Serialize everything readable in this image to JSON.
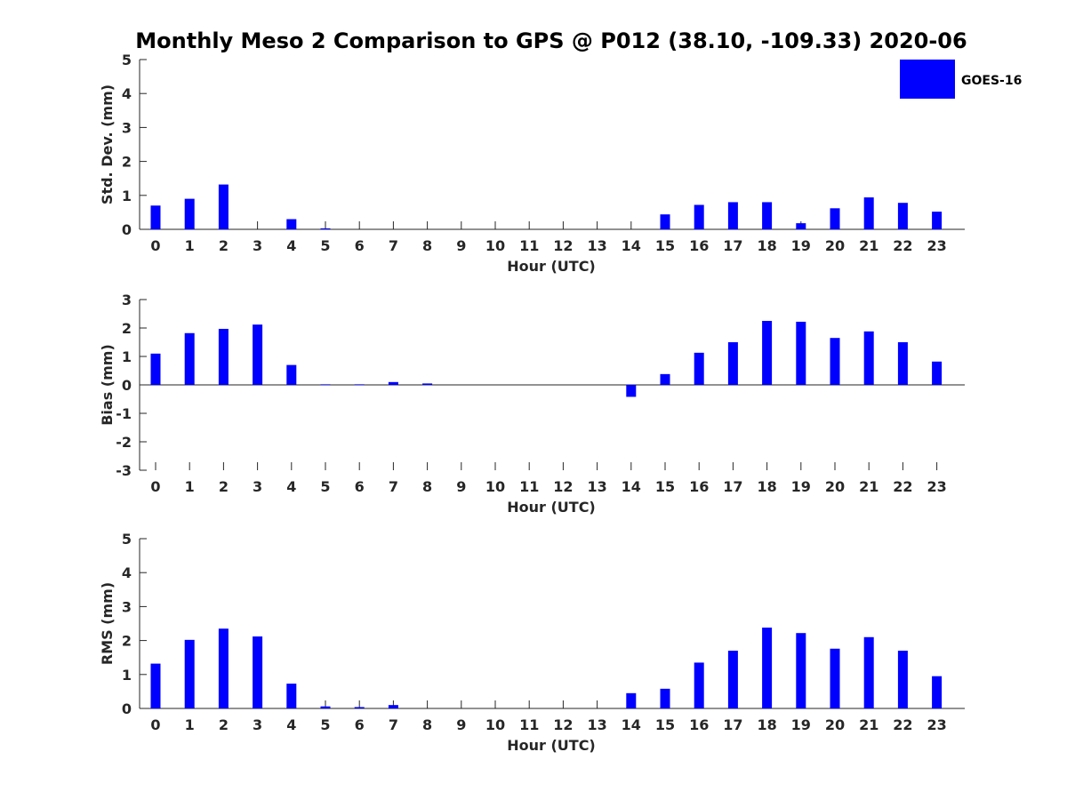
{
  "title": "Monthly Meso 2 Comparison to GPS @ P012 (38.10, -109.33) 2020-06",
  "legend": {
    "label": "GOES-16",
    "color": "#0000ff"
  },
  "chart_data": [
    {
      "type": "bar",
      "ylabel": "Std. Dev. (mm)",
      "xlabel": "Hour (UTC)",
      "ylim": [
        0,
        5
      ],
      "yticks": [
        0,
        1,
        2,
        3,
        4,
        5
      ],
      "categories": [
        "0",
        "1",
        "2",
        "3",
        "4",
        "5",
        "6",
        "7",
        "8",
        "9",
        "10",
        "11",
        "12",
        "13",
        "14",
        "15",
        "16",
        "17",
        "18",
        "19",
        "20",
        "21",
        "22",
        "23"
      ],
      "series": [
        {
          "name": "GOES-16",
          "values": [
            0.7,
            0.9,
            1.32,
            null,
            0.3,
            0.03,
            null,
            null,
            null,
            null,
            null,
            null,
            null,
            null,
            null,
            0.44,
            0.72,
            0.8,
            0.8,
            0.18,
            0.62,
            0.94,
            0.78,
            0.52
          ]
        }
      ]
    },
    {
      "type": "bar",
      "ylabel": "Bias (mm)",
      "xlabel": "Hour (UTC)",
      "ylim": [
        -3,
        3
      ],
      "yticks": [
        -3,
        -2,
        -1,
        0,
        1,
        2,
        3
      ],
      "categories": [
        "0",
        "1",
        "2",
        "3",
        "4",
        "5",
        "6",
        "7",
        "8",
        "9",
        "10",
        "11",
        "12",
        "13",
        "14",
        "15",
        "16",
        "17",
        "18",
        "19",
        "20",
        "21",
        "22",
        "23"
      ],
      "series": [
        {
          "name": "GOES-16",
          "values": [
            1.1,
            1.82,
            1.97,
            2.12,
            0.7,
            0.02,
            0.02,
            0.1,
            0.05,
            null,
            null,
            null,
            null,
            null,
            -0.42,
            0.38,
            1.13,
            1.5,
            2.25,
            2.22,
            1.65,
            1.88,
            1.5,
            0.82
          ]
        }
      ]
    },
    {
      "type": "bar",
      "ylabel": "RMS (mm)",
      "xlabel": "Hour (UTC)",
      "ylim": [
        0,
        5
      ],
      "yticks": [
        0,
        1,
        2,
        3,
        4,
        5
      ],
      "categories": [
        "0",
        "1",
        "2",
        "3",
        "4",
        "5",
        "6",
        "7",
        "8",
        "9",
        "10",
        "11",
        "12",
        "13",
        "14",
        "15",
        "16",
        "17",
        "18",
        "19",
        "20",
        "21",
        "22",
        "23"
      ],
      "series": [
        {
          "name": "GOES-16",
          "values": [
            1.32,
            2.02,
            2.35,
            2.12,
            0.73,
            0.06,
            0.04,
            0.1,
            null,
            null,
            null,
            null,
            null,
            null,
            0.45,
            0.58,
            1.35,
            1.7,
            2.38,
            2.22,
            1.76,
            2.1,
            1.7,
            0.95
          ]
        }
      ]
    }
  ]
}
